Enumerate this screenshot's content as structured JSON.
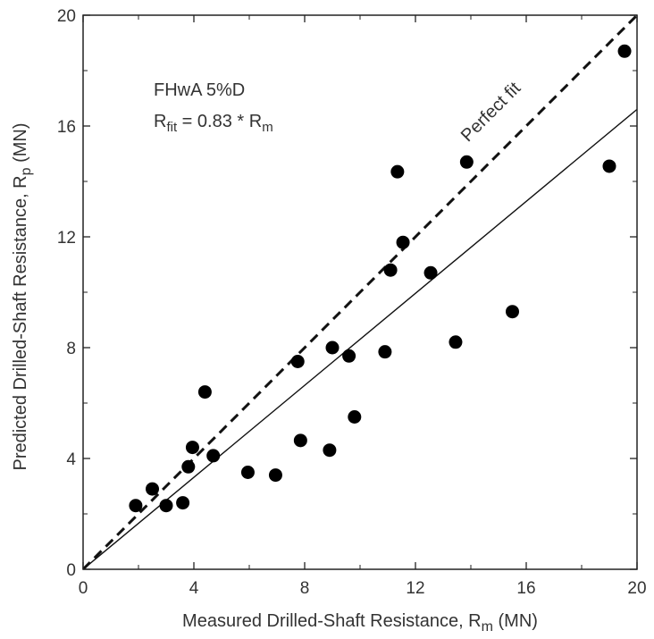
{
  "chart_data": {
    "type": "scatter",
    "xlabel": "Measured Drilled-Shaft Resistance, R",
    "xlabel_sub": "m",
    "xlabel_unit": " (MN)",
    "ylabel": "Predicted Drilled-Shaft Resistance, R",
    "ylabel_sub": "p",
    "ylabel_unit": " (MN)",
    "xlim": [
      0,
      20
    ],
    "ylim": [
      0,
      20
    ],
    "xticks": [
      0,
      4,
      8,
      12,
      16,
      20
    ],
    "yticks": [
      0,
      4,
      8,
      12,
      16,
      20
    ],
    "grid": false,
    "annotation": {
      "method": "FHwA 5%D",
      "fit_prefix": "R",
      "fit_sub": "fit",
      "fit_mid": " = 0.83 * R",
      "fit_sub2": "m"
    },
    "lines": [
      {
        "name": "Perfect fit",
        "slope": 1.0,
        "style": "dashed"
      },
      {
        "name": "",
        "slope": 0.83,
        "style": "solid"
      }
    ],
    "points": [
      {
        "x": 1.9,
        "y": 2.3
      },
      {
        "x": 2.5,
        "y": 2.9
      },
      {
        "x": 3.0,
        "y": 2.3
      },
      {
        "x": 3.6,
        "y": 2.4
      },
      {
        "x": 3.8,
        "y": 3.7
      },
      {
        "x": 3.95,
        "y": 4.4
      },
      {
        "x": 4.4,
        "y": 6.4
      },
      {
        "x": 4.7,
        "y": 4.1
      },
      {
        "x": 5.95,
        "y": 3.5
      },
      {
        "x": 6.95,
        "y": 3.4
      },
      {
        "x": 7.75,
        "y": 7.5
      },
      {
        "x": 7.85,
        "y": 4.65
      },
      {
        "x": 8.9,
        "y": 4.3
      },
      {
        "x": 9.0,
        "y": 8.0
      },
      {
        "x": 9.6,
        "y": 7.7
      },
      {
        "x": 9.8,
        "y": 5.5
      },
      {
        "x": 10.9,
        "y": 7.85
      },
      {
        "x": 11.1,
        "y": 10.8
      },
      {
        "x": 11.35,
        "y": 14.35
      },
      {
        "x": 11.55,
        "y": 11.8
      },
      {
        "x": 12.55,
        "y": 10.7
      },
      {
        "x": 13.45,
        "y": 8.2
      },
      {
        "x": 13.85,
        "y": 14.7
      },
      {
        "x": 15.5,
        "y": 9.3
      },
      {
        "x": 19.0,
        "y": 14.55
      },
      {
        "x": 19.55,
        "y": 18.7
      }
    ]
  }
}
